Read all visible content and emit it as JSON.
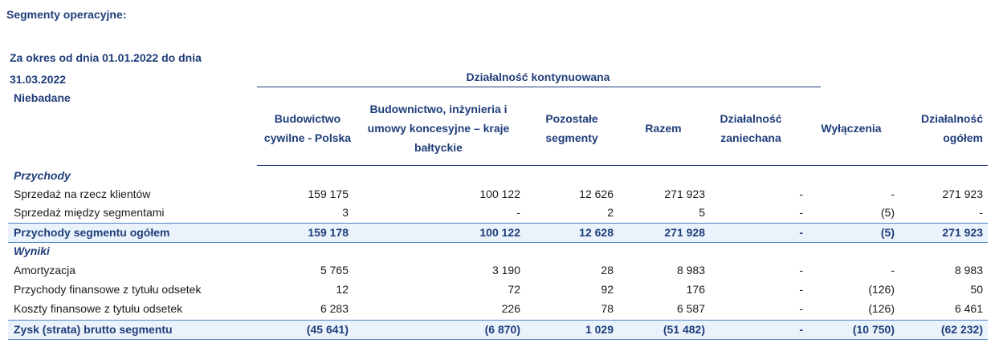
{
  "heading": "Segmenty operacyjne:",
  "period": "Za okres od dnia 01.01.2022 do dnia 31.03.2022",
  "audit_status": "Niebadane",
  "continuing_title": "Działalność kontynuowana",
  "columns": [
    "Budowictwo cywilne - Polska",
    "Budownictwo, inżynieria i umowy koncesyjne – kraje bałtyckie",
    "Pozostałe segmenty",
    "Razem",
    "Działalność zaniechana",
    "Wyłączenia",
    "Działalność ogółem"
  ],
  "sections": {
    "revenue": "Przychody",
    "results": "Wyniki"
  },
  "rows": [
    {
      "label": "Sprzedaż na rzecz klientów",
      "values": [
        "159 175",
        "100 122",
        "12 626",
        "271 923",
        "-",
        "-",
        "271 923"
      ]
    },
    {
      "label": "Sprzedaż między segmentami",
      "values": [
        "3",
        "-",
        "2",
        "5",
        "-",
        "(5)",
        "-"
      ]
    },
    {
      "label": "Przychody segmentu ogółem",
      "values": [
        "159 178",
        "100 122",
        "12 628",
        "271 928",
        "-",
        "(5)",
        "271 923"
      ]
    },
    {
      "label": "Amortyzacja",
      "values": [
        "5 765",
        "3 190",
        "28",
        "8 983",
        "-",
        "-",
        "8 983"
      ]
    },
    {
      "label": "Przychody finansowe z tytułu odsetek",
      "values": [
        "12",
        "72",
        "92",
        "176",
        "-",
        "(126)",
        "50"
      ]
    },
    {
      "label": "Koszty finansowe z tytułu odsetek",
      "values": [
        "6 283",
        "226",
        "78",
        "6 587",
        "-",
        "(126)",
        "6 461"
      ]
    },
    {
      "label": "Zysk (strata) brutto segmentu",
      "values": [
        "(45 641)",
        "(6 870)",
        "1 029",
        "(51 482)",
        "-",
        "(10 750)",
        "(62 232)"
      ]
    }
  ]
}
